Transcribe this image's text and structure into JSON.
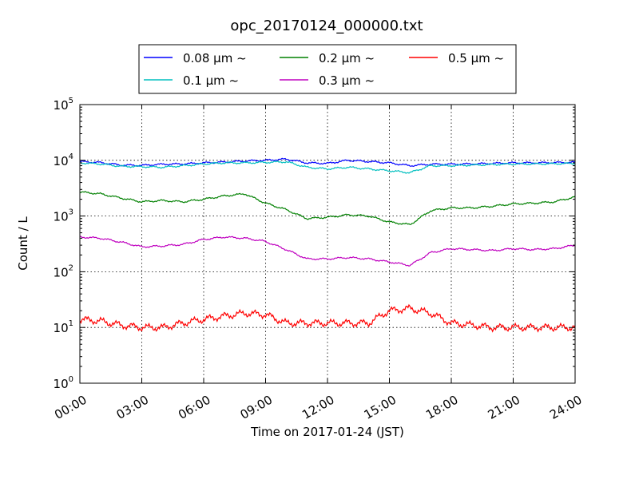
{
  "chart_data": {
    "type": "line",
    "title": "opc_20170124_000000.txt",
    "xlabel": "Time on 2017-01-24 (JST)",
    "ylabel": "Count / L",
    "yscale": "log",
    "xlim": [
      "00:00",
      "24:00"
    ],
    "ylim": [
      1,
      100000
    ],
    "grid": true,
    "legend_position": "top-center",
    "x_ticks": [
      "00:00",
      "03:00",
      "06:00",
      "09:00",
      "12:00",
      "15:00",
      "18:00",
      "21:00",
      "24:00"
    ],
    "y_ticks": [
      {
        "base": "10",
        "exp": "0",
        "value": 1
      },
      {
        "base": "10",
        "exp": "1",
        "value": 10
      },
      {
        "base": "10",
        "exp": "2",
        "value": 100
      },
      {
        "base": "10",
        "exp": "3",
        "value": 1000
      },
      {
        "base": "10",
        "exp": "4",
        "value": 10000
      },
      {
        "base": "10",
        "exp": "5",
        "value": 100000
      }
    ],
    "x": [
      "00:00",
      "01:00",
      "02:00",
      "03:00",
      "04:00",
      "05:00",
      "06:00",
      "07:00",
      "08:00",
      "09:00",
      "10:00",
      "11:00",
      "12:00",
      "13:00",
      "14:00",
      "15:00",
      "16:00",
      "17:00",
      "18:00",
      "19:00",
      "20:00",
      "21:00",
      "22:00",
      "23:00",
      "24:00"
    ],
    "series": [
      {
        "name": "0.08 μm ~",
        "color": "#0000ff",
        "values": [
          9500,
          9100,
          8200,
          8100,
          8500,
          8600,
          9000,
          9300,
          9700,
          10000,
          10500,
          9000,
          8800,
          10000,
          9500,
          9000,
          8000,
          8500,
          8500,
          8600,
          8800,
          9000,
          9000,
          9100,
          9200
        ]
      },
      {
        "name": "0.1 μm ~",
        "color": "#00bfbf",
        "values": [
          9000,
          8600,
          7800,
          7700,
          7500,
          8000,
          8600,
          9000,
          9000,
          9200,
          9400,
          7500,
          7000,
          7500,
          7000,
          6500,
          6000,
          8000,
          8000,
          8200,
          8400,
          8600,
          8600,
          8700,
          8800
        ]
      },
      {
        "name": "0.2 μm ~",
        "color": "#008000",
        "values": [
          2700,
          2500,
          2100,
          1800,
          1900,
          1800,
          2000,
          2300,
          2500,
          1700,
          1300,
          900,
          950,
          1050,
          1000,
          780,
          700,
          1250,
          1400,
          1400,
          1500,
          1650,
          1700,
          1800,
          2200
        ]
      },
      {
        "name": "0.3 μm ~",
        "color": "#bf00bf",
        "values": [
          420,
          400,
          340,
          280,
          290,
          310,
          380,
          420,
          400,
          350,
          250,
          170,
          170,
          180,
          170,
          150,
          130,
          220,
          260,
          250,
          240,
          260,
          250,
          260,
          300
        ]
      },
      {
        "name": "0.5 μm ~",
        "color": "#ff0000",
        "values": [
          14,
          13,
          11,
          10,
          10,
          12,
          14,
          16,
          18,
          17,
          12,
          12,
          12,
          12,
          12,
          20,
          22,
          18,
          12,
          11,
          10,
          10,
          10,
          10,
          10
        ]
      }
    ]
  }
}
